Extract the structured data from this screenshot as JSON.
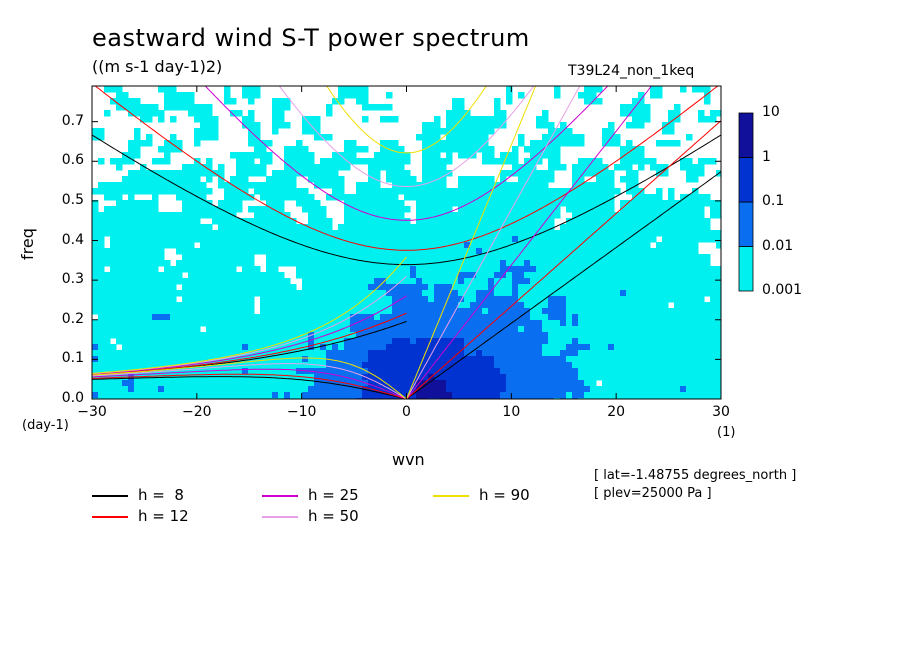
{
  "chart_data": {
    "type": "heatmap",
    "title": "eastward wind S-T power spectrum",
    "subtitle": "((m s-1 day-1)2)",
    "run_label": "T39L24_non_1keq",
    "xlabel": "wvn",
    "xunit": "(1)",
    "ylabel": "freq",
    "yunit": "(day-1)",
    "xlim": [
      -30,
      30
    ],
    "ylim": [
      0,
      0.79
    ],
    "xticks": [
      -30,
      -20,
      -10,
      0,
      10,
      20,
      30
    ],
    "xtick_labels": [
      "−30",
      "−20",
      "−10",
      "0",
      "10",
      "20",
      "30"
    ],
    "yticks": [
      0.0,
      0.1,
      0.2,
      0.3,
      0.4,
      0.5,
      0.6,
      0.7
    ],
    "ytick_labels": [
      "0.0",
      "0.1",
      "0.2",
      "0.3",
      "0.4",
      "0.5",
      "0.6",
      "0.7"
    ],
    "colorbar": {
      "levels": [
        0.001,
        0.01,
        0.1,
        1,
        10
      ],
      "labels": [
        "0.001",
        "0.01",
        "0.1",
        "1",
        "10"
      ],
      "colors": [
        "#00f0f0",
        "#0a6ef0",
        "#0033d0",
        "#10109a"
      ]
    },
    "background_color": "#ffffff",
    "dispersion_curves": [
      {
        "name": "h =  8",
        "h": 8,
        "color": "#000000"
      },
      {
        "name": "h = 12",
        "h": 12,
        "color": "#ff0000"
      },
      {
        "name": "h = 25",
        "h": 25,
        "color": "#d000d0"
      },
      {
        "name": "h = 50",
        "h": 50,
        "color": "#e8a0e8"
      },
      {
        "name": "h = 90",
        "h": 90,
        "color": "#f0e000"
      }
    ],
    "annotations": [
      "[ lat=-1.48755 degrees_north ]",
      "[ plev=25000 Pa ]"
    ]
  }
}
